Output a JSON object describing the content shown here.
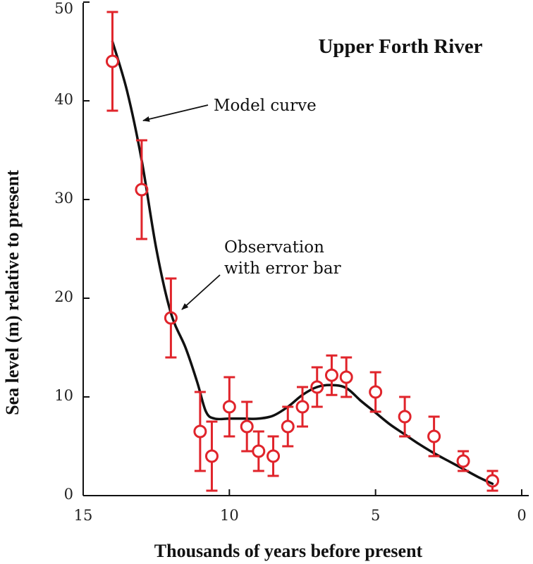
{
  "chart_data": {
    "type": "line",
    "title": "Upper Forth River",
    "xlabel": "Thousands of years before present",
    "ylabel": "Sea level (m) relative to present",
    "xlim": [
      15,
      0
    ],
    "ylim": [
      0,
      50
    ],
    "x_ticks": [
      "15",
      "10",
      "5",
      "0"
    ],
    "y_ticks": [
      "0",
      "10",
      "20",
      "30",
      "40",
      "50"
    ],
    "grid": false,
    "colors": {
      "model": "#111111",
      "observations": "#e0242b"
    },
    "series": [
      {
        "type": "line",
        "x": [
          14.0,
          13.5,
          13.0,
          12.5,
          12.0,
          11.5,
          11.1,
          10.8,
          10.5,
          10.0,
          9.5,
          9.0,
          8.5,
          8.0,
          7.5,
          7.0,
          6.5,
          6.0,
          5.5,
          5.0,
          4.5,
          4.0,
          3.5,
          3.0,
          2.5,
          2.0,
          1.5,
          1.0
        ],
        "y": [
          46.0,
          41.0,
          34.0,
          25.0,
          18.5,
          15.0,
          11.5,
          8.5,
          7.8,
          7.8,
          7.8,
          7.8,
          8.1,
          9.0,
          10.2,
          11.0,
          11.2,
          10.9,
          9.6,
          8.4,
          7.2,
          6.2,
          5.2,
          4.3,
          3.5,
          2.7,
          1.9,
          1.2
        ]
      },
      {
        "type": "scatter",
        "x": [
          14.0,
          13.0,
          12.0,
          11.0,
          10.6,
          10.0,
          9.4,
          9.0,
          8.5,
          8.0,
          7.5,
          7.0,
          6.5,
          6.0,
          5.0,
          4.0,
          3.0,
          2.0,
          1.0
        ],
        "y": [
          44.0,
          31.0,
          18.0,
          6.5,
          4.0,
          9.0,
          7.0,
          4.5,
          4.0,
          7.0,
          9.0,
          11.0,
          12.2,
          12.0,
          10.5,
          8.0,
          6.0,
          3.5,
          1.5
        ],
        "err": [
          5.0,
          5.0,
          4.0,
          4.0,
          3.5,
          3.0,
          2.5,
          2.0,
          2.0,
          2.0,
          2.0,
          2.0,
          2.0,
          2.0,
          2.0,
          2.0,
          2.0,
          1.0,
          1.0
        ]
      }
    ],
    "annotations": {
      "model": "Model curve",
      "obs_line1": "Observation",
      "obs_line2": "with error bar"
    }
  }
}
